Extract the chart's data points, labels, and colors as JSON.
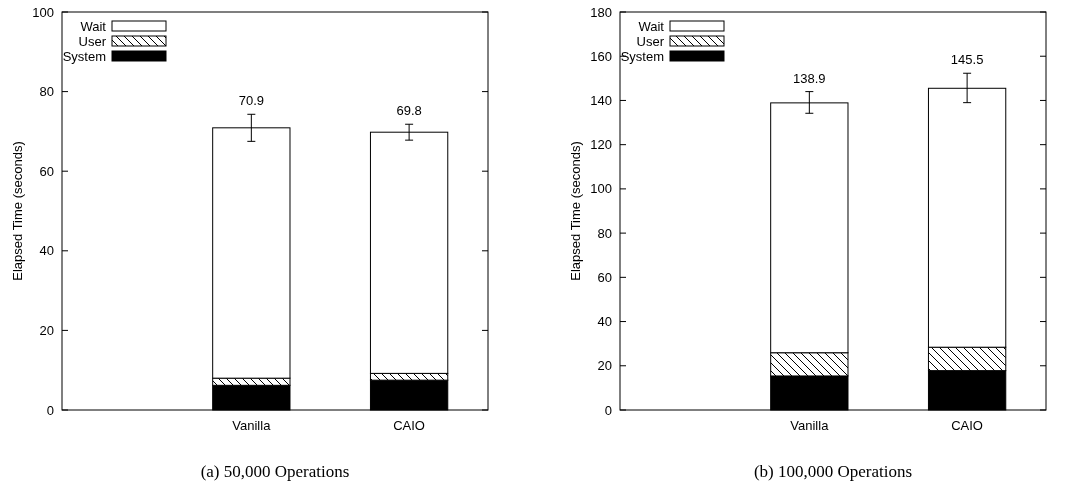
{
  "chart_data": [
    {
      "type": "bar",
      "title": "(a)  50,000 Operations",
      "ylabel": "Elapsed Time (seconds)",
      "categories": [
        "Vanilla",
        "CAIO"
      ],
      "stacked": true,
      "ylim": [
        0,
        100
      ],
      "yticks": [
        0,
        20,
        40,
        60,
        80,
        100
      ],
      "legend": "top left",
      "totals": [
        "70.9",
        "69.8"
      ],
      "series": [
        {
          "name": "System",
          "color": "#000000",
          "values": [
            6.2,
            7.5
          ]
        },
        {
          "name": "User",
          "color": "#ffffff",
          "values": [
            1.8,
            1.7
          ]
        },
        {
          "name": "Wait",
          "color": "#ffffff",
          "values": [
            62.9,
            60.6
          ],
          "errors": [
            [
              67.5,
              74.3
            ],
            [
              67.8,
              71.8
            ]
          ]
        }
      ]
    },
    {
      "type": "bar",
      "title": "(b)  100,000 Operations",
      "ylabel": "Elapsed Time (seconds)",
      "categories": [
        "Vanilla",
        "CAIO"
      ],
      "stacked": true,
      "ylim": [
        0,
        180
      ],
      "yticks": [
        0,
        20,
        40,
        60,
        80,
        100,
        120,
        140,
        160,
        180
      ],
      "legend": "top left",
      "totals": [
        "138.9",
        "145.5"
      ],
      "series": [
        {
          "name": "System",
          "color": "#000000",
          "values": [
            15.4,
            17.8
          ]
        },
        {
          "name": "User",
          "color": "#ffffff",
          "values": [
            10.5,
            10.6
          ]
        },
        {
          "name": "Wait",
          "color": "#ffffff",
          "values": [
            113.0,
            117.1
          ],
          "errors": [
            [
              134.2,
              144.0
            ],
            [
              139.0,
              152.3
            ]
          ]
        }
      ]
    }
  ]
}
